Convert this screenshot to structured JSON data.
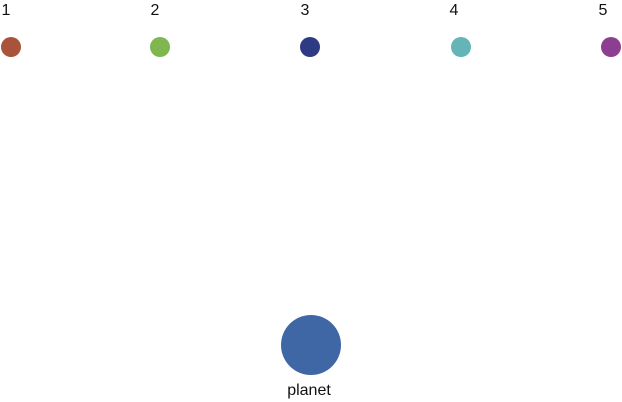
{
  "nodes": [
    {
      "label": "1",
      "color": "#a9533a"
    },
    {
      "label": "2",
      "color": "#7fb64f"
    },
    {
      "label": "3",
      "color": "#2f3a84"
    },
    {
      "label": "4",
      "color": "#65b4b7"
    },
    {
      "label": "5",
      "color": "#8c3f91"
    }
  ],
  "planet": {
    "label": "planet",
    "color": "#3f67a6"
  }
}
